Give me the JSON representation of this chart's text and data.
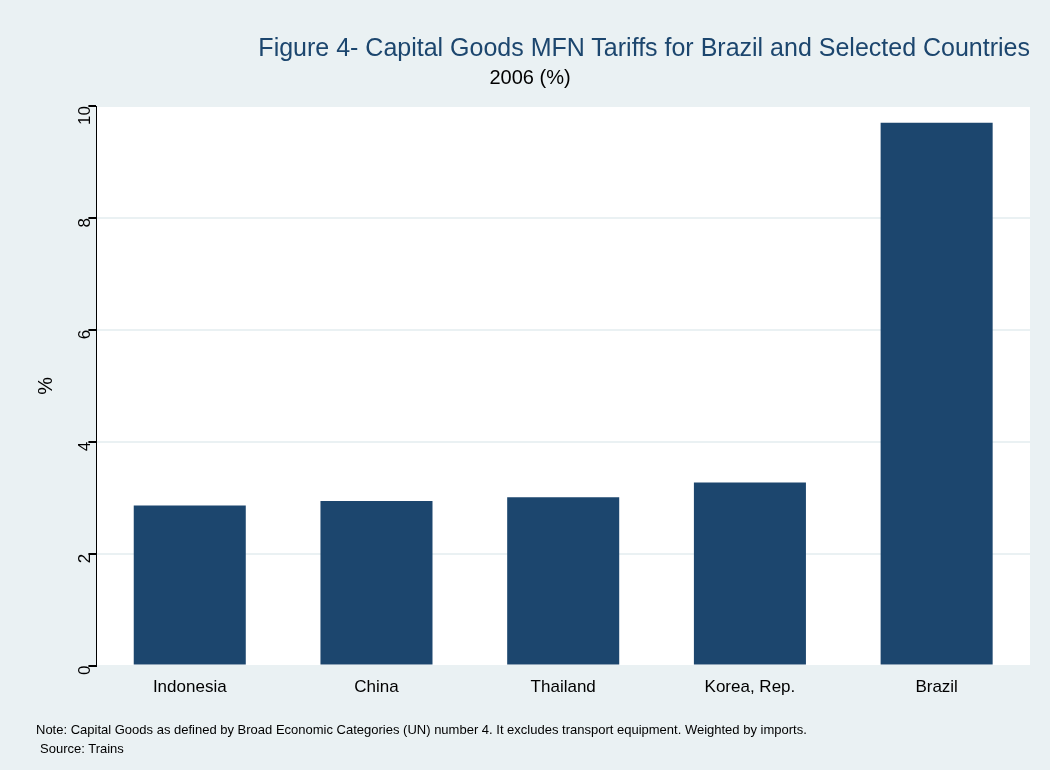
{
  "chart_data": {
    "type": "bar",
    "title": "Figure 4- Capital Goods MFN Tariffs for Brazil and Selected Countries",
    "subtitle": "2006 (%)",
    "ylabel": "%",
    "categories": [
      "Indonesia",
      "China",
      "Thailand",
      "Korea, Rep.",
      "Brazil"
    ],
    "values": [
      2.86,
      2.94,
      3.01,
      3.27,
      9.7
    ],
    "color": "#1c466e",
    "ylim": [
      0,
      10
    ],
    "yticks": [
      0,
      2,
      4,
      6,
      8,
      10
    ],
    "grid": "y",
    "legend": false,
    "annotations": [
      "Note: Capital Goods as defined by Broad Economic Categories (UN) number 4. It excludes transport equipment. Weighted by imports.",
      "Source: Trains"
    ]
  }
}
